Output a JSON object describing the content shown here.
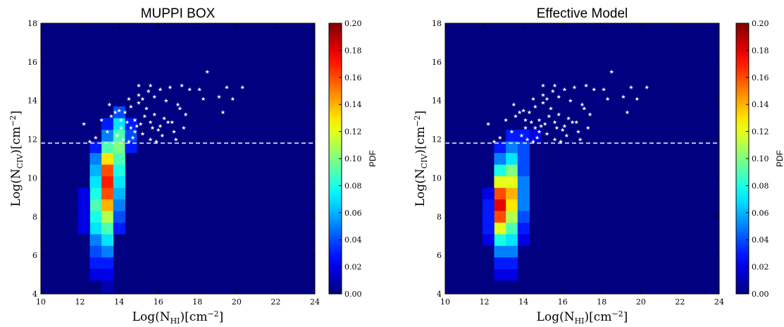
{
  "figure": {
    "x_ticks": [
      "10",
      "12",
      "14",
      "16",
      "18",
      "20",
      "22",
      "24"
    ],
    "y_ticks": [
      "4",
      "6",
      "8",
      "10",
      "12",
      "14",
      "16",
      "18"
    ],
    "colorbar_ticks": [
      "0.00",
      "0.02",
      "0.04",
      "0.06",
      "0.08",
      "0.10",
      "0.12",
      "0.14",
      "0.16",
      "0.18",
      "0.20"
    ],
    "colorbar_label": "PDF",
    "xlabel": {
      "prefix": "Log(N",
      "sub": "HI",
      "mid": ")[cm",
      "sup": "−2",
      "suffix": "]"
    },
    "ylabel": {
      "prefix": "Log(N",
      "sub": "CIV",
      "mid": ")[cm",
      "sup": "−2",
      "suffix": "]"
    }
  },
  "chart_data": [
    {
      "type": "heatmap",
      "title": "MUPPI BOX",
      "xlim": [
        10,
        24
      ],
      "ylim": [
        4,
        18
      ],
      "clim": [
        0.0,
        0.2
      ],
      "colormap": "jet",
      "bin_width_x": 0.6,
      "bin_width_y": 0.6,
      "threshold_line_y": 11.8,
      "cells": [
        [
          12.8,
          5.6,
          0.03
        ],
        [
          12.8,
          6.2,
          0.04
        ],
        [
          12.8,
          6.8,
          0.05
        ],
        [
          12.8,
          7.4,
          0.07
        ],
        [
          12.8,
          8.0,
          0.08
        ],
        [
          12.8,
          8.6,
          0.09
        ],
        [
          12.8,
          9.2,
          0.08
        ],
        [
          12.8,
          9.8,
          0.07
        ],
        [
          12.8,
          10.4,
          0.06
        ],
        [
          12.8,
          11.0,
          0.05
        ],
        [
          12.8,
          11.6,
          0.03
        ],
        [
          13.4,
          5.6,
          0.03
        ],
        [
          13.4,
          6.2,
          0.05
        ],
        [
          13.4,
          6.8,
          0.07
        ],
        [
          13.4,
          7.4,
          0.09
        ],
        [
          13.4,
          8.0,
          0.11
        ],
        [
          13.4,
          8.6,
          0.14
        ],
        [
          13.4,
          9.2,
          0.16
        ],
        [
          13.4,
          9.8,
          0.17
        ],
        [
          13.4,
          10.4,
          0.16
        ],
        [
          13.4,
          11.0,
          0.13
        ],
        [
          13.4,
          11.6,
          0.09
        ],
        [
          13.4,
          12.2,
          0.05
        ],
        [
          13.4,
          12.8,
          0.03
        ],
        [
          14.0,
          7.4,
          0.03
        ],
        [
          14.0,
          8.0,
          0.04
        ],
        [
          14.0,
          8.6,
          0.05
        ],
        [
          14.0,
          9.2,
          0.06
        ],
        [
          14.0,
          9.8,
          0.07
        ],
        [
          14.0,
          10.4,
          0.08
        ],
        [
          14.0,
          11.0,
          0.09
        ],
        [
          14.0,
          11.6,
          0.1
        ],
        [
          14.0,
          12.2,
          0.09
        ],
        [
          14.0,
          12.8,
          0.07
        ],
        [
          14.0,
          13.4,
          0.04
        ],
        [
          14.6,
          11.6,
          0.03
        ],
        [
          14.6,
          12.2,
          0.04
        ],
        [
          14.6,
          12.8,
          0.03
        ],
        [
          12.2,
          7.4,
          0.02
        ],
        [
          12.2,
          8.0,
          0.02
        ],
        [
          12.2,
          8.6,
          0.02
        ],
        [
          12.2,
          9.2,
          0.02
        ],
        [
          13.4,
          4.4,
          0.01
        ],
        [
          13.4,
          5.0,
          0.02
        ],
        [
          12.8,
          5.0,
          0.02
        ]
      ],
      "scatter": [
        [
          18.5,
          15.5
        ],
        [
          20.3,
          14.7
        ],
        [
          19.5,
          14.7
        ],
        [
          17.2,
          14.8
        ],
        [
          17.6,
          14.6
        ],
        [
          18.1,
          14.6
        ],
        [
          19.1,
          14.2
        ],
        [
          19.8,
          14.1
        ],
        [
          18.3,
          14.1
        ],
        [
          16.6,
          14.7
        ],
        [
          16.1,
          14.6
        ],
        [
          15.5,
          14.5
        ],
        [
          15.0,
          14.3
        ],
        [
          15.8,
          14.2
        ],
        [
          16.4,
          14.0
        ],
        [
          17.0,
          13.8
        ],
        [
          15.2,
          14.1
        ],
        [
          14.5,
          14.1
        ],
        [
          14.0,
          13.5
        ],
        [
          14.3,
          13.4
        ],
        [
          14.6,
          13.7
        ],
        [
          15.0,
          13.9
        ],
        [
          15.4,
          13.6
        ],
        [
          15.8,
          13.3
        ],
        [
          16.3,
          13.1
        ],
        [
          17.1,
          13.6
        ],
        [
          17.4,
          13.3
        ],
        [
          16.7,
          12.9
        ],
        [
          16.1,
          12.7
        ],
        [
          15.6,
          12.9
        ],
        [
          15.1,
          12.8
        ],
        [
          14.8,
          12.4
        ],
        [
          14.4,
          12.9
        ],
        [
          14.1,
          12.6
        ],
        [
          13.9,
          12.2
        ],
        [
          14.2,
          12.0
        ],
        [
          14.7,
          12.1
        ],
        [
          15.2,
          12.3
        ],
        [
          15.6,
          12.0
        ],
        [
          16.2,
          12.2
        ],
        [
          16.8,
          12.4
        ],
        [
          17.3,
          12.6
        ],
        [
          15.9,
          11.9
        ],
        [
          14.5,
          11.9
        ],
        [
          13.4,
          12.4
        ],
        [
          13.1,
          13.0
        ],
        [
          13.6,
          13.2
        ],
        [
          14.1,
          13.0
        ],
        [
          14.8,
          13.0
        ],
        [
          12.8,
          12.1
        ],
        [
          12.2,
          12.8
        ],
        [
          12.5,
          11.9
        ],
        [
          16.0,
          12.5
        ],
        [
          15.3,
          13.2
        ],
        [
          14.9,
          12.7
        ],
        [
          15.7,
          12.6
        ],
        [
          16.5,
          12.9
        ],
        [
          14.6,
          12.6
        ],
        [
          13.5,
          13.8
        ],
        [
          13.8,
          13.4
        ],
        [
          19.3,
          13.4
        ],
        [
          16.9,
          12.0
        ],
        [
          15.0,
          14.8
        ],
        [
          15.6,
          14.8
        ]
      ]
    },
    {
      "type": "heatmap",
      "title": "Effective Model",
      "xlim": [
        10,
        24
      ],
      "ylim": [
        4,
        18
      ],
      "clim": [
        0.0,
        0.2
      ],
      "colormap": "jet",
      "bin_width_x": 0.6,
      "bin_width_y": 0.6,
      "threshold_line_y": 11.8,
      "cells": [
        [
          12.8,
          5.0,
          0.02
        ],
        [
          12.8,
          5.6,
          0.03
        ],
        [
          12.8,
          6.2,
          0.05
        ],
        [
          12.8,
          6.8,
          0.08
        ],
        [
          12.8,
          7.4,
          0.12
        ],
        [
          12.8,
          8.0,
          0.16
        ],
        [
          12.8,
          8.6,
          0.18
        ],
        [
          12.8,
          9.2,
          0.16
        ],
        [
          12.8,
          9.8,
          0.12
        ],
        [
          12.8,
          10.4,
          0.08
        ],
        [
          12.8,
          11.0,
          0.05
        ],
        [
          12.8,
          11.6,
          0.03
        ],
        [
          13.4,
          5.0,
          0.02
        ],
        [
          13.4,
          5.6,
          0.03
        ],
        [
          13.4,
          6.2,
          0.05
        ],
        [
          13.4,
          6.8,
          0.07
        ],
        [
          13.4,
          7.4,
          0.09
        ],
        [
          13.4,
          8.0,
          0.11
        ],
        [
          13.4,
          8.6,
          0.13
        ],
        [
          13.4,
          9.2,
          0.14
        ],
        [
          13.4,
          9.8,
          0.12
        ],
        [
          13.4,
          10.4,
          0.1
        ],
        [
          13.4,
          11.0,
          0.07
        ],
        [
          13.4,
          11.6,
          0.05
        ],
        [
          13.4,
          12.2,
          0.03
        ],
        [
          14.0,
          6.8,
          0.02
        ],
        [
          14.0,
          7.4,
          0.03
        ],
        [
          14.0,
          8.0,
          0.04
        ],
        [
          14.0,
          8.6,
          0.05
        ],
        [
          14.0,
          9.2,
          0.05
        ],
        [
          14.0,
          9.8,
          0.05
        ],
        [
          14.0,
          10.4,
          0.04
        ],
        [
          14.0,
          11.0,
          0.04
        ],
        [
          14.0,
          11.6,
          0.04
        ],
        [
          14.0,
          12.2,
          0.03
        ],
        [
          12.2,
          6.8,
          0.02
        ],
        [
          12.2,
          7.4,
          0.03
        ],
        [
          12.2,
          8.0,
          0.03
        ],
        [
          12.2,
          8.6,
          0.03
        ],
        [
          12.2,
          9.2,
          0.02
        ],
        [
          14.6,
          12.2,
          0.02
        ]
      ],
      "scatter": [
        [
          18.5,
          15.5
        ],
        [
          20.3,
          14.7
        ],
        [
          19.5,
          14.7
        ],
        [
          17.2,
          14.8
        ],
        [
          17.6,
          14.6
        ],
        [
          18.1,
          14.6
        ],
        [
          19.1,
          14.2
        ],
        [
          19.8,
          14.1
        ],
        [
          18.3,
          14.1
        ],
        [
          16.6,
          14.7
        ],
        [
          16.1,
          14.6
        ],
        [
          15.5,
          14.5
        ],
        [
          15.0,
          14.3
        ],
        [
          15.8,
          14.2
        ],
        [
          16.4,
          14.0
        ],
        [
          17.0,
          13.8
        ],
        [
          15.2,
          14.1
        ],
        [
          14.5,
          14.1
        ],
        [
          14.0,
          13.5
        ],
        [
          14.3,
          13.4
        ],
        [
          14.6,
          13.7
        ],
        [
          15.0,
          13.9
        ],
        [
          15.4,
          13.6
        ],
        [
          15.8,
          13.3
        ],
        [
          16.3,
          13.1
        ],
        [
          17.1,
          13.6
        ],
        [
          17.4,
          13.3
        ],
        [
          16.7,
          12.9
        ],
        [
          16.1,
          12.7
        ],
        [
          15.6,
          12.9
        ],
        [
          15.1,
          12.8
        ],
        [
          14.8,
          12.4
        ],
        [
          14.4,
          12.9
        ],
        [
          14.1,
          12.6
        ],
        [
          13.9,
          12.2
        ],
        [
          14.2,
          12.0
        ],
        [
          14.7,
          12.1
        ],
        [
          15.2,
          12.3
        ],
        [
          15.6,
          12.0
        ],
        [
          16.2,
          12.2
        ],
        [
          16.8,
          12.4
        ],
        [
          17.3,
          12.6
        ],
        [
          15.9,
          11.9
        ],
        [
          14.5,
          11.9
        ],
        [
          13.4,
          12.4
        ],
        [
          13.1,
          13.0
        ],
        [
          13.6,
          13.2
        ],
        [
          14.1,
          13.0
        ],
        [
          14.8,
          13.0
        ],
        [
          12.8,
          12.1
        ],
        [
          12.2,
          12.8
        ],
        [
          12.5,
          11.9
        ],
        [
          16.0,
          12.5
        ],
        [
          15.3,
          13.2
        ],
        [
          14.9,
          12.7
        ],
        [
          15.7,
          12.6
        ],
        [
          16.5,
          12.9
        ],
        [
          14.6,
          12.6
        ],
        [
          13.5,
          13.8
        ],
        [
          13.8,
          13.4
        ],
        [
          19.3,
          13.4
        ],
        [
          16.9,
          12.0
        ],
        [
          15.0,
          14.8
        ],
        [
          15.6,
          14.8
        ]
      ]
    }
  ]
}
